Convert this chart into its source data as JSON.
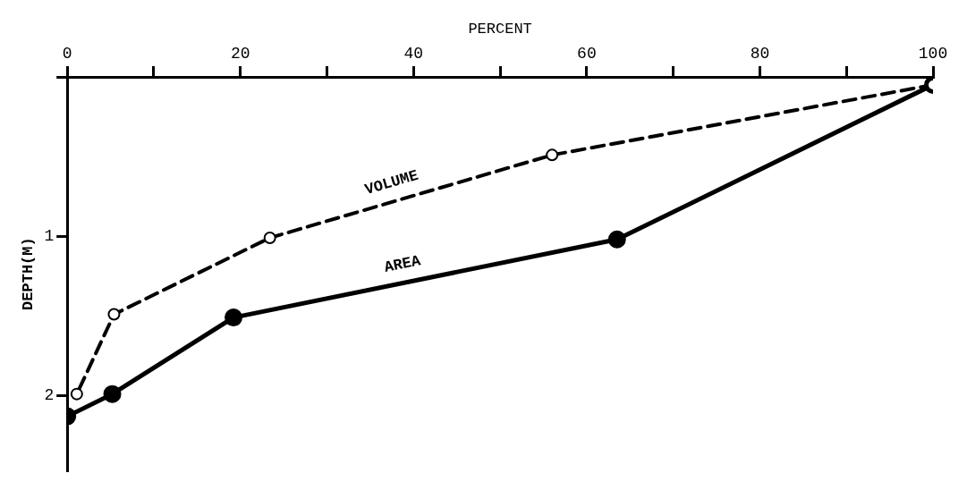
{
  "chart_data": {
    "type": "line",
    "xlabel": "PERCENT",
    "ylabel": "DEPTH(M)",
    "xlim": [
      0,
      100
    ],
    "ylim": [
      2.47,
      0
    ],
    "xticks": [
      0,
      {
        "value": 10,
        "label": null
      },
      20,
      {
        "value": 30,
        "label": null
      },
      40,
      {
        "value": 50,
        "label": null
      },
      60,
      {
        "value": 70,
        "label": null
      },
      80,
      {
        "value": 90,
        "label": null
      },
      100
    ],
    "yticks": [
      {
        "value": 0,
        "label": null
      },
      1,
      2
    ],
    "grid": false,
    "legend": false,
    "marker": "circle",
    "series": [
      {
        "name": "VOLUME",
        "color": "#000000",
        "line_style": "dashed",
        "x": [
          100,
          56,
          23.4,
          5.4,
          1.1
        ],
        "values": [
          0.05,
          0.49,
          1.01,
          1.49,
          1.99
        ]
      },
      {
        "name": "AREA",
        "color": "#000000",
        "line_style": "solid",
        "x": [
          100,
          63.5,
          19.2,
          5.2,
          0
        ],
        "values": [
          0.05,
          1.02,
          1.51,
          1.99,
          2.13
        ]
      }
    ]
  }
}
